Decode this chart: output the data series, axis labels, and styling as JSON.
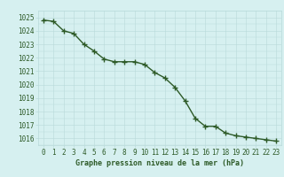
{
  "x": [
    0,
    1,
    2,
    3,
    4,
    5,
    6,
    7,
    8,
    9,
    10,
    11,
    12,
    13,
    14,
    15,
    16,
    17,
    18,
    19,
    20,
    21,
    22,
    23
  ],
  "y": [
    1024.8,
    1024.7,
    1024.0,
    1023.8,
    1023.0,
    1022.5,
    1021.9,
    1021.7,
    1021.7,
    1021.7,
    1021.5,
    1020.9,
    1020.5,
    1019.8,
    1018.8,
    1017.5,
    1016.9,
    1016.9,
    1016.4,
    1016.2,
    1016.1,
    1016.0,
    1015.9,
    1015.8
  ],
  "ylim": [
    1015.5,
    1025.5
  ],
  "yticks": [
    1016,
    1017,
    1018,
    1019,
    1020,
    1021,
    1022,
    1023,
    1024,
    1025
  ],
  "xlim": [
    -0.5,
    23.5
  ],
  "xticks": [
    0,
    1,
    2,
    3,
    4,
    5,
    6,
    7,
    8,
    9,
    10,
    11,
    12,
    13,
    14,
    15,
    16,
    17,
    18,
    19,
    20,
    21,
    22,
    23
  ],
  "xlabel": "Graphe pression niveau de la mer (hPa)",
  "line_color": "#2d5a27",
  "marker": "+",
  "bg_color": "#d6f0f0",
  "grid_color": "#b8dada",
  "tick_label_color": "#2d5a27",
  "xlabel_color": "#2d5a27",
  "xlabel_fontsize": 6.0,
  "tick_fontsize": 5.5,
  "linewidth": 1.0,
  "markersize": 4,
  "markeredgewidth": 1.0
}
